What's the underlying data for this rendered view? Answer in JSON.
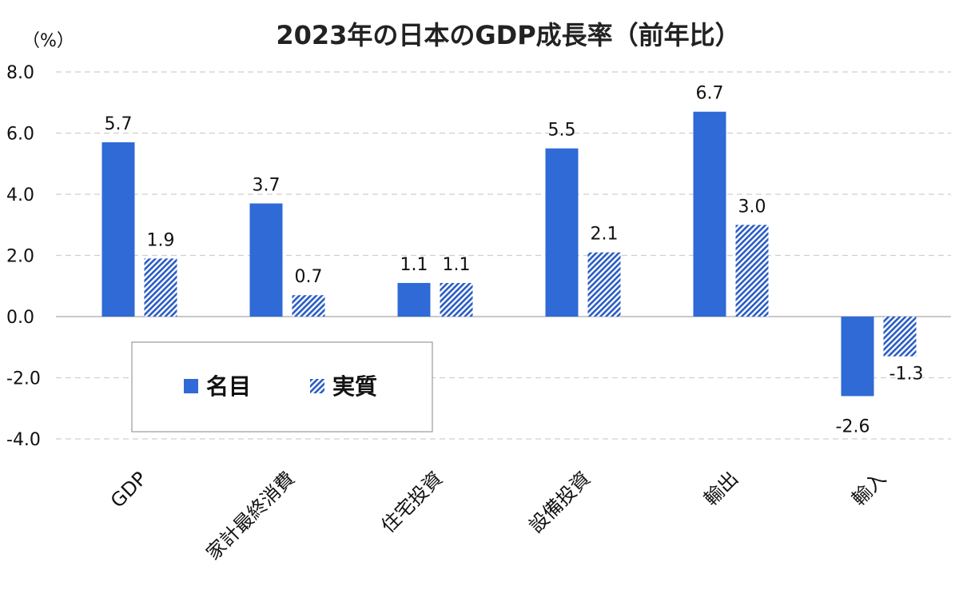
{
  "chart_data": {
    "type": "bar",
    "title": "2023年の日本のGDP成長率（前年比）",
    "ylabel": "（%）",
    "xlabel": "",
    "ylim": [
      -4,
      8
    ],
    "yticks": [
      8,
      6,
      4,
      2,
      0,
      -2,
      -4
    ],
    "ytick_labels": [
      "8.0",
      "6.0",
      "4.0",
      "2.0",
      "0.0",
      "-2.0",
      "-4.0"
    ],
    "grid": true,
    "legend_position": "lower-left inside",
    "categories": [
      "GDP",
      "家計最終消費",
      "住宅投資",
      "設備投資",
      "輸出",
      "輸入"
    ],
    "series": [
      {
        "name": "名目",
        "values": [
          5.7,
          3.7,
          1.1,
          5.5,
          6.7,
          -2.6
        ],
        "labels": [
          "5.7",
          "3.7",
          "1.1",
          "5.5",
          "6.7",
          "-2.6"
        ],
        "color": "#2f6ad6",
        "pattern": "solid"
      },
      {
        "name": "実質",
        "values": [
          1.9,
          0.7,
          1.1,
          2.1,
          3.0,
          -1.3
        ],
        "labels": [
          "1.9",
          "0.7",
          "1.1",
          "2.1",
          "3.0",
          "-1.3"
        ],
        "color": "#2f6ad6",
        "pattern": "diagonal-hatch"
      }
    ],
    "negative_label_color": "#e8100f",
    "negative_tick_color": "#e8100f"
  }
}
